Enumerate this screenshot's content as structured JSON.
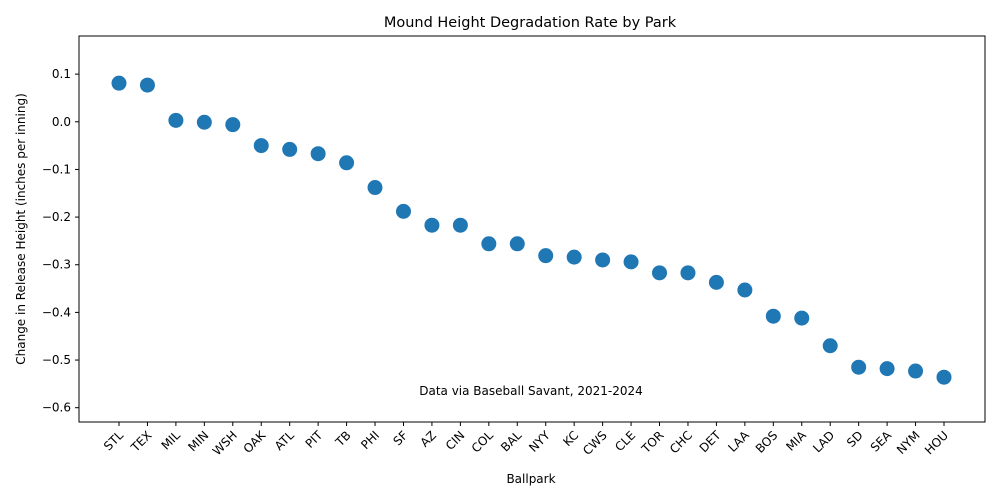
{
  "chart_data": {
    "type": "scatter",
    "title": "Mound Height Degradation Rate by Park",
    "xlabel": "Ballpark",
    "ylabel": "Change in Release Height (inches per inning)",
    "annotation": "Data via Baseball Savant, 2021-2024",
    "ylim": [
      -0.63,
      0.18
    ],
    "yticks": [
      0.1,
      0.0,
      -0.1,
      -0.2,
      -0.3,
      -0.4,
      -0.5,
      -0.6
    ],
    "ytick_labels": [
      "0.1",
      "0.0",
      "−0.1",
      "−0.2",
      "−0.3",
      "−0.4",
      "−0.5",
      "−0.6"
    ],
    "grid": false,
    "marker_color": "#1f77b4",
    "categories": [
      "STL",
      "TEX",
      "MIL",
      "MIN",
      "WSH",
      "OAK",
      "ATL",
      "PIT",
      "TB",
      "PHI",
      "SF",
      "AZ",
      "CIN",
      "COL",
      "BAL",
      "NYY",
      "KC",
      "CWS",
      "CLE",
      "TOR",
      "CHC",
      "DET",
      "LAA",
      "BOS",
      "MIA",
      "LAD",
      "SD",
      "SEA",
      "NYM",
      "HOU"
    ],
    "values": [
      0.081,
      0.077,
      0.003,
      -0.001,
      -0.006,
      -0.05,
      -0.058,
      -0.067,
      -0.086,
      -0.138,
      -0.188,
      -0.217,
      -0.217,
      -0.256,
      -0.256,
      -0.281,
      -0.284,
      -0.29,
      -0.294,
      -0.317,
      -0.317,
      -0.337,
      -0.353,
      -0.408,
      -0.412,
      -0.47,
      -0.515,
      -0.518,
      -0.523,
      -0.536
    ]
  }
}
